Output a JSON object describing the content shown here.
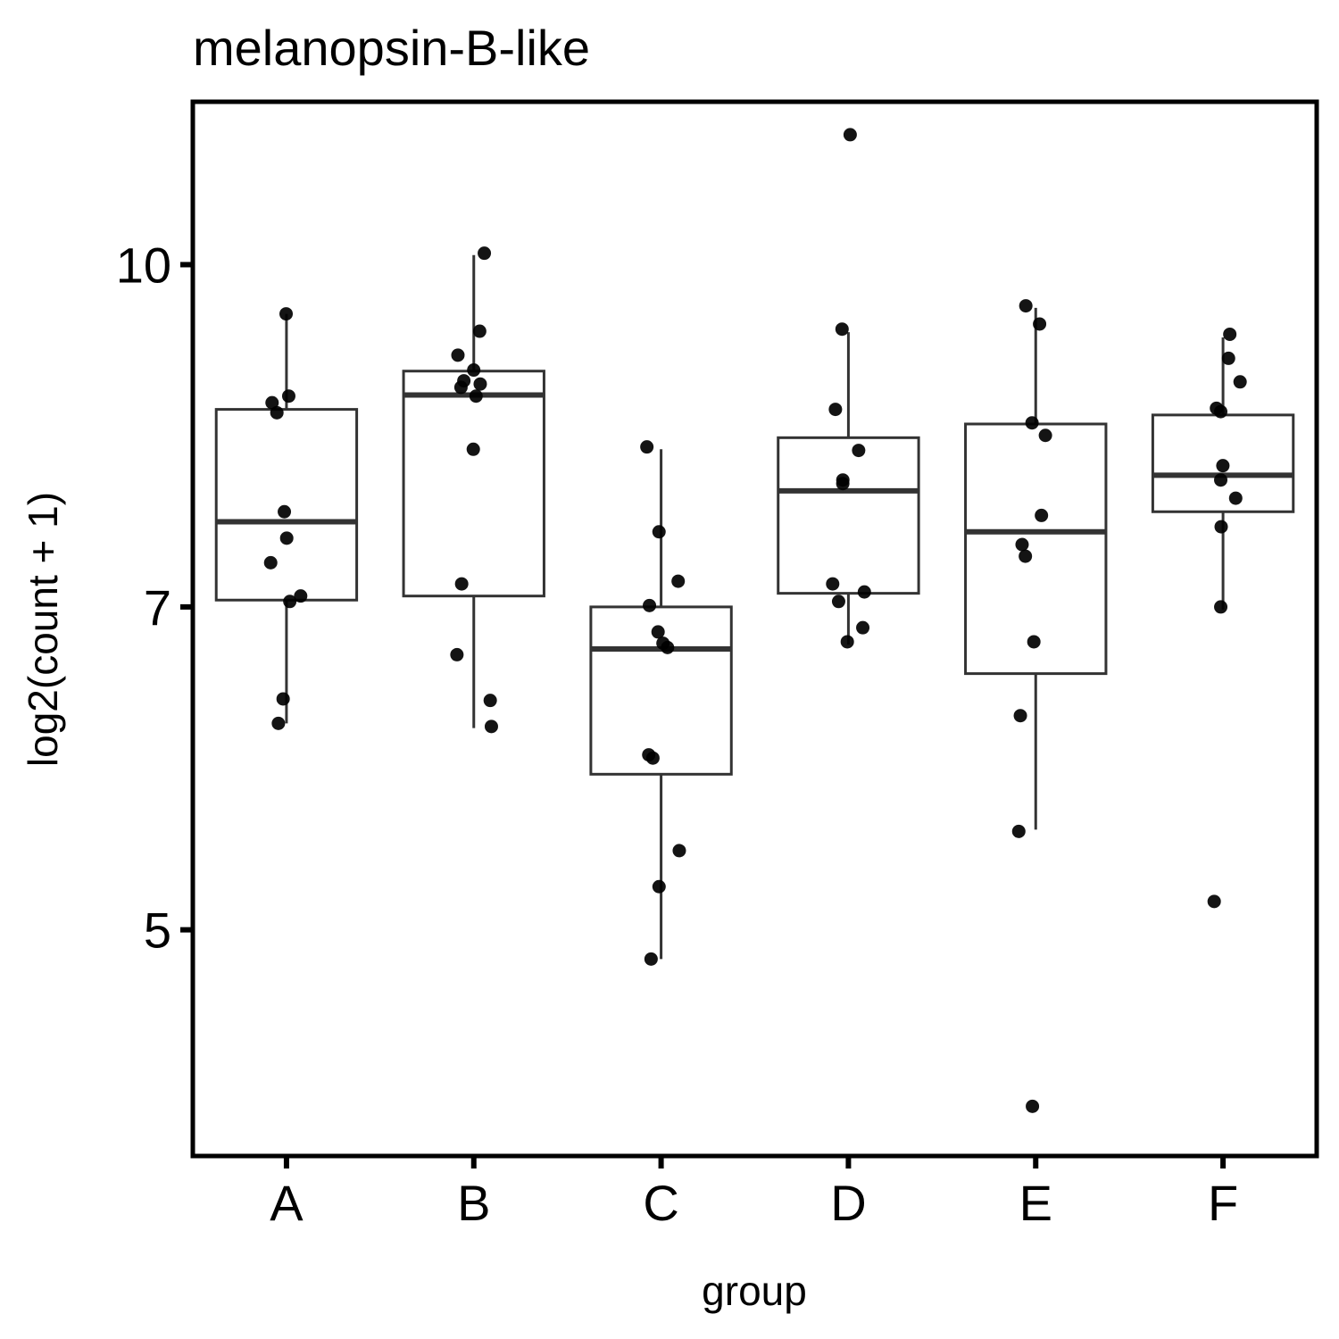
{
  "chart_data": {
    "type": "box",
    "title": "melanopsin-B-like",
    "xlabel": "group",
    "ylabel": "log2(count + 1)",
    "y_scale": "log",
    "ylim": [
      3.95,
      11.85
    ],
    "yticks": [
      5,
      7,
      10
    ],
    "ytick_labels": [
      "5",
      "7",
      "10"
    ],
    "categories": [
      "A",
      "B",
      "C",
      "D",
      "E",
      "F"
    ],
    "grid": false,
    "boxes": [
      {
        "group": "A",
        "lower_whisker": 6.2,
        "q1": 7.05,
        "median": 7.65,
        "q3": 8.6,
        "upper_whisker": 9.5
      },
      {
        "group": "B",
        "lower_whisker": 6.17,
        "q1": 7.08,
        "median": 8.73,
        "q3": 8.95,
        "upper_whisker": 10.1
      },
      {
        "group": "C",
        "lower_whisker": 4.85,
        "q1": 5.88,
        "median": 6.7,
        "q3": 7.0,
        "upper_whisker": 8.25
      },
      {
        "group": "D",
        "lower_whisker": 6.73,
        "q1": 7.1,
        "median": 7.9,
        "q3": 8.35,
        "upper_whisker": 9.32
      },
      {
        "group": "E",
        "lower_whisker": 5.55,
        "q1": 6.53,
        "median": 7.57,
        "q3": 8.47,
        "upper_whisker": 9.56
      },
      {
        "group": "F",
        "lower_whisker": 6.98,
        "q1": 7.73,
        "median": 8.03,
        "q3": 8.55,
        "upper_whisker": 9.27
      }
    ],
    "points": [
      {
        "group": "A",
        "y": [
          9.5,
          8.72,
          8.66,
          8.57,
          7.73,
          7.52,
          7.33,
          7.08,
          7.04,
          6.36,
          6.2
        ]
      },
      {
        "group": "B",
        "y": [
          10.12,
          9.33,
          9.1,
          8.96,
          8.86,
          8.83,
          8.8,
          8.72,
          8.25,
          7.17,
          6.66,
          6.35,
          6.18
        ]
      },
      {
        "group": "C",
        "y": [
          8.27,
          7.57,
          7.19,
          7.01,
          6.82,
          6.74,
          6.71,
          5.98,
          6.0,
          5.43,
          5.23,
          4.85
        ]
      },
      {
        "group": "D",
        "y": [
          11.45,
          9.35,
          8.6,
          8.24,
          7.99,
          7.96,
          7.17,
          7.11,
          7.04,
          6.85,
          6.75
        ]
      },
      {
        "group": "E",
        "y": [
          9.58,
          9.4,
          8.48,
          8.37,
          7.7,
          7.47,
          7.38,
          6.75,
          6.25,
          5.54,
          4.16
        ]
      },
      {
        "group": "F",
        "y": [
          9.3,
          9.07,
          8.85,
          8.61,
          8.58,
          8.11,
          7.99,
          7.84,
          7.61,
          7.0,
          5.15
        ]
      }
    ]
  }
}
